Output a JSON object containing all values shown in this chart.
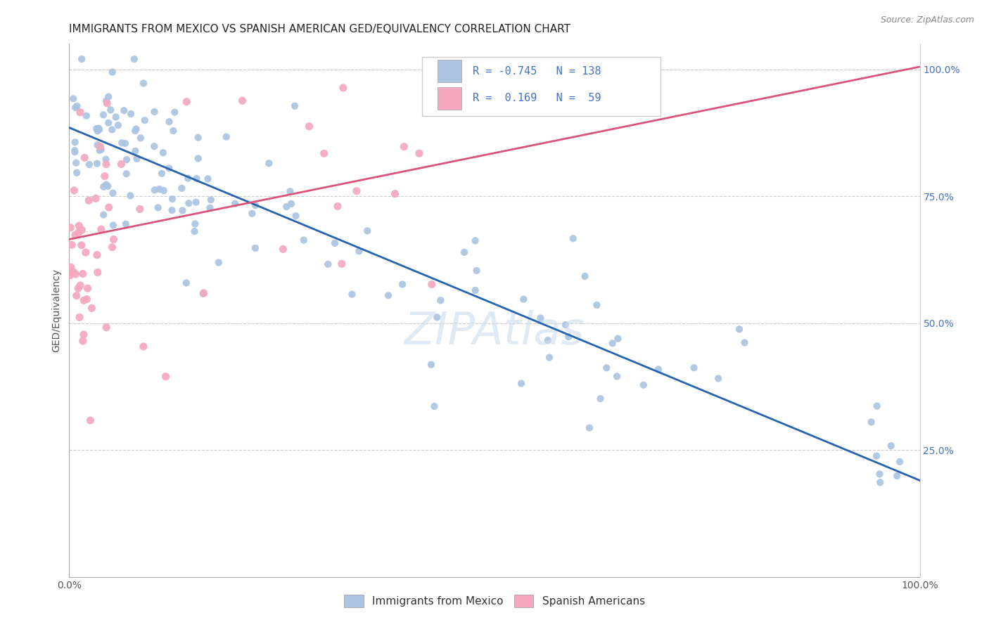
{
  "title": "IMMIGRANTS FROM MEXICO VS SPANISH AMERICAN GED/EQUIVALENCY CORRELATION CHART",
  "source": "Source: ZipAtlas.com",
  "ylabel": "GED/Equivalency",
  "blue_R": -0.745,
  "blue_N": 138,
  "pink_R": 0.169,
  "pink_N": 59,
  "blue_color": "#aac4e2",
  "pink_color": "#f4a7be",
  "blue_line_color": "#2563b0",
  "pink_line_color": "#d9547a",
  "blue_legend_label": "Immigrants from Mexico",
  "pink_legend_label": "Spanish Americans",
  "xlim": [
    0.0,
    1.0
  ],
  "ylim": [
    0.0,
    1.05
  ],
  "ytick_vals": [
    0.25,
    0.5,
    0.75,
    1.0
  ],
  "ytick_labels": [
    "25.0%",
    "50.0%",
    "75.0%",
    "100.0%"
  ],
  "watermark": "ZIPAtlas",
  "background_color": "#ffffff",
  "title_fontsize": 11,
  "axis_label_fontsize": 10,
  "tick_fontsize": 10,
  "legend_fontsize": 11,
  "source_fontsize": 9,
  "blue_line_x0": 0.0,
  "blue_line_y0": 0.885,
  "blue_line_x1": 1.0,
  "blue_line_y1": 0.19,
  "pink_line_x0": 0.0,
  "pink_line_y0": 0.665,
  "pink_line_x1": 1.0,
  "pink_line_y1": 1.005
}
